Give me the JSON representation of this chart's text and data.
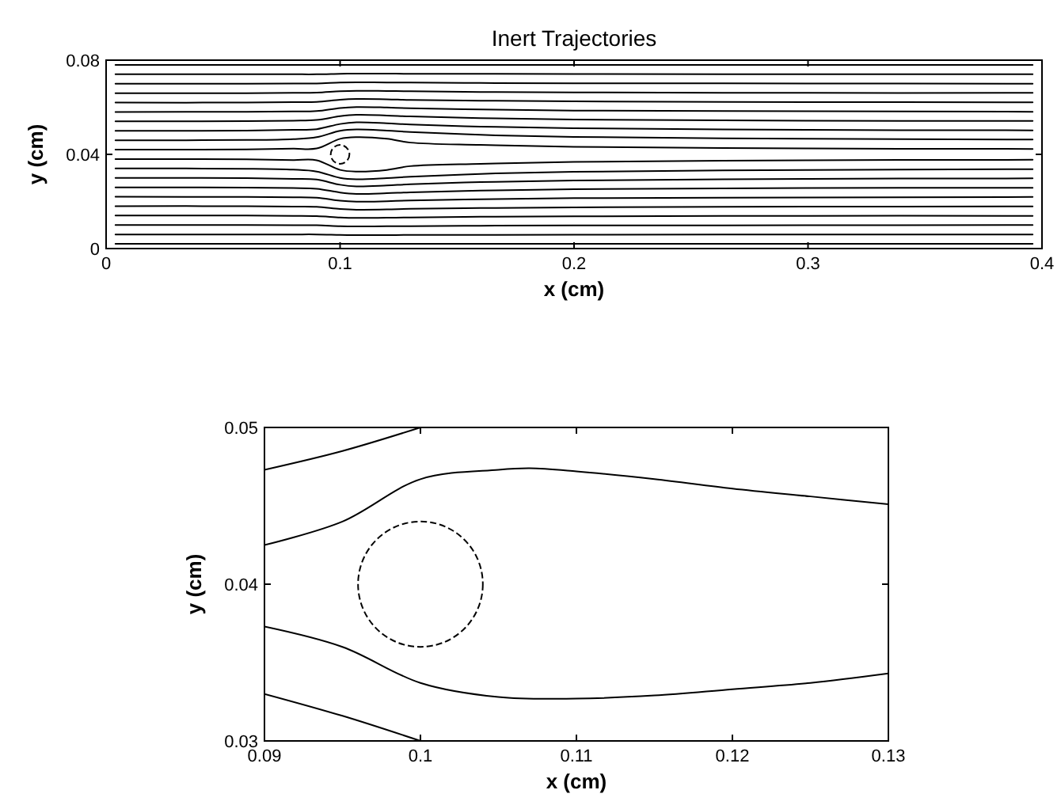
{
  "chart_data": [
    {
      "type": "line",
      "title": "Inert Trajectories",
      "xlabel": "x (cm)",
      "ylabel": "y (cm)",
      "xlim": [
        0,
        0.4
      ],
      "ylim": [
        0,
        0.08
      ],
      "xticks": [
        0,
        0.1,
        0.2,
        0.3,
        0.4
      ],
      "yticks": [
        0,
        0.04,
        0.08
      ],
      "x": [
        0.004,
        0.06,
        0.08,
        0.09,
        0.1,
        0.107,
        0.12,
        0.13,
        0.16,
        0.2,
        0.3,
        0.396
      ],
      "series": [
        {
          "color": "#000000",
          "values": [
            0.078,
            0.078,
            0.078,
            0.078,
            0.078,
            0.078,
            0.078,
            0.078,
            0.078,
            0.078,
            0.078,
            0.078
          ]
        },
        {
          "color": "#000000",
          "values": [
            0.074,
            0.074,
            0.074,
            0.074,
            0.0742,
            0.0743,
            0.0743,
            0.0742,
            0.0742,
            0.0741,
            0.074,
            0.074
          ]
        },
        {
          "color": "#000000",
          "values": [
            0.07,
            0.07,
            0.0701,
            0.0701,
            0.0705,
            0.0706,
            0.0705,
            0.0705,
            0.0703,
            0.0702,
            0.0701,
            0.07
          ]
        },
        {
          "color": "#000000",
          "values": [
            0.066,
            0.066,
            0.0661,
            0.0662,
            0.0668,
            0.067,
            0.0669,
            0.0668,
            0.0665,
            0.0663,
            0.0661,
            0.0661
          ]
        },
        {
          "color": "#000000",
          "values": [
            0.062,
            0.062,
            0.0622,
            0.0623,
            0.0632,
            0.0635,
            0.0634,
            0.0631,
            0.0628,
            0.0625,
            0.0622,
            0.0621
          ]
        },
        {
          "color": "#000000",
          "values": [
            0.058,
            0.0581,
            0.0582,
            0.0584,
            0.0597,
            0.0601,
            0.0599,
            0.0596,
            0.0591,
            0.0586,
            0.0583,
            0.0581
          ]
        },
        {
          "color": "#000000",
          "values": [
            0.054,
            0.0541,
            0.0543,
            0.0546,
            0.0562,
            0.0568,
            0.0565,
            0.0561,
            0.0554,
            0.0548,
            0.0543,
            0.0542
          ]
        },
        {
          "color": "#000000",
          "values": [
            0.05,
            0.0501,
            0.0504,
            0.0507,
            0.0529,
            0.0536,
            0.0532,
            0.0527,
            0.0518,
            0.0511,
            0.0504,
            0.0502
          ]
        },
        {
          "color": "#000000",
          "values": [
            0.046,
            0.0461,
            0.0465,
            0.0473,
            0.05,
            0.0506,
            0.0501,
            0.0495,
            0.0483,
            0.0474,
            0.0466,
            0.0463
          ]
        },
        {
          "color": "#000000",
          "values": [
            0.042,
            0.0421,
            0.0424,
            0.0425,
            0.0466,
            0.0473,
            0.0466,
            0.045,
            0.044,
            0.0432,
            0.0425,
            0.0423
          ]
        },
        {
          "color": "#000000",
          "values": [
            0.038,
            0.0379,
            0.0376,
            0.0375,
            0.0334,
            0.0327,
            0.0334,
            0.035,
            0.036,
            0.0368,
            0.0375,
            0.0377
          ]
        },
        {
          "color": "#000000",
          "values": [
            0.034,
            0.0339,
            0.0335,
            0.0327,
            0.03,
            0.0294,
            0.0299,
            0.0305,
            0.0317,
            0.0326,
            0.0334,
            0.0337
          ]
        },
        {
          "color": "#000000",
          "values": [
            0.03,
            0.0299,
            0.0296,
            0.0293,
            0.0271,
            0.0264,
            0.0268,
            0.0273,
            0.0282,
            0.0289,
            0.0296,
            0.0298
          ]
        },
        {
          "color": "#000000",
          "values": [
            0.026,
            0.0259,
            0.0257,
            0.0254,
            0.0238,
            0.0232,
            0.0235,
            0.0239,
            0.0246,
            0.0252,
            0.0257,
            0.0258
          ]
        },
        {
          "color": "#000000",
          "values": [
            0.022,
            0.0219,
            0.0218,
            0.0216,
            0.0203,
            0.0199,
            0.0201,
            0.0204,
            0.0209,
            0.0214,
            0.0217,
            0.0219
          ]
        },
        {
          "color": "#000000",
          "values": [
            0.018,
            0.018,
            0.0178,
            0.0177,
            0.0168,
            0.0165,
            0.0166,
            0.0169,
            0.0172,
            0.0175,
            0.0178,
            0.0179
          ]
        },
        {
          "color": "#000000",
          "values": [
            0.014,
            0.014,
            0.0139,
            0.0138,
            0.0132,
            0.013,
            0.0131,
            0.0132,
            0.0135,
            0.0137,
            0.0139,
            0.0139
          ]
        },
        {
          "color": "#000000",
          "values": [
            0.01,
            0.01,
            0.0099,
            0.0099,
            0.0095,
            0.0094,
            0.0095,
            0.0095,
            0.0097,
            0.0098,
            0.0099,
            0.01
          ]
        },
        {
          "color": "#000000",
          "values": [
            0.006,
            0.006,
            0.006,
            0.006,
            0.0058,
            0.0057,
            0.0057,
            0.0058,
            0.0058,
            0.0059,
            0.006,
            0.006
          ]
        },
        {
          "color": "#000000",
          "values": [
            0.002,
            0.002,
            0.002,
            0.002,
            0.002,
            0.002,
            0.002,
            0.002,
            0.002,
            0.002,
            0.002,
            0.002
          ]
        }
      ]
    },
    {
      "type": "line",
      "xlabel": "x (cm)",
      "ylabel": "y (cm)",
      "xlim": [
        0.09,
        0.13
      ],
      "ylim": [
        0.03,
        0.05
      ],
      "xticks": [
        0.09,
        0.1,
        0.11,
        0.12,
        0.13
      ],
      "yticks": [
        0.03,
        0.04,
        0.05
      ],
      "series": [
        {
          "color": "#000000",
          "x": [
            0.09,
            0.095,
            0.1
          ],
          "values": [
            0.0473,
            0.0485,
            0.05
          ]
        },
        {
          "color": "#000000",
          "x": [
            0.09,
            0.095,
            0.1,
            0.105,
            0.107,
            0.11,
            0.115,
            0.12,
            0.125,
            0.13
          ],
          "values": [
            0.0425,
            0.044,
            0.0467,
            0.0473,
            0.0474,
            0.0472,
            0.0467,
            0.0461,
            0.0456,
            0.0451
          ]
        },
        {
          "color": "#000000",
          "x": [
            0.09,
            0.095,
            0.1,
            0.105,
            0.11,
            0.115,
            0.12,
            0.125,
            0.13
          ],
          "values": [
            0.0373,
            0.036,
            0.0337,
            0.0328,
            0.0327,
            0.0329,
            0.0333,
            0.0337,
            0.0343
          ]
        },
        {
          "color": "#000000",
          "x": [
            0.09,
            0.095,
            0.1
          ],
          "values": [
            0.033,
            0.0316,
            0.03
          ]
        }
      ]
    }
  ]
}
